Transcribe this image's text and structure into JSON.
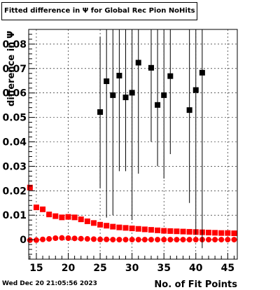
{
  "title": "Fitted difference in  Ψ  for Global Rec Pion NoHits",
  "datestamp": "Wed Dec 20 21:05:56 2023",
  "chart_data": {
    "type": "scatter",
    "title": "Fitted difference in  Ψ  for Global Rec Pion NoHits",
    "xlabel": "No. of Fit Points",
    "ylabel": "difference in Ψ",
    "xlim": [
      13.8,
      46.5
    ],
    "ylim": [
      -0.008,
      0.086
    ],
    "xticks": [
      15,
      20,
      25,
      30,
      35,
      40,
      45
    ],
    "yticks": [
      0,
      0.01,
      0.02,
      0.03,
      0.04,
      0.05,
      0.06,
      0.07,
      0.08
    ],
    "ytick_labels": [
      "0",
      "0.01",
      "0.02",
      "0.03",
      "0.04",
      "0.05",
      "0.06",
      "0.07",
      "0.08"
    ],
    "grid": true,
    "colors": {
      "red": "#ff0000",
      "black": "#000000"
    },
    "series": [
      {
        "marker": "square",
        "color": "#ff0000",
        "x": [
          14,
          15,
          16,
          17,
          18,
          19,
          20,
          21,
          22,
          23,
          24,
          25,
          26,
          27,
          28,
          29,
          30,
          31,
          32,
          33,
          34,
          35,
          36,
          37,
          38,
          39,
          40,
          41,
          42,
          43,
          44,
          45,
          46
        ],
        "y": [
          0.0213,
          0.0132,
          0.0124,
          0.0103,
          0.0096,
          0.0091,
          0.0093,
          0.0091,
          0.0083,
          0.0075,
          0.0068,
          0.0061,
          0.0057,
          0.0053,
          0.005,
          0.0048,
          0.0046,
          0.0044,
          0.0042,
          0.004,
          0.0038,
          0.0036,
          0.0035,
          0.0034,
          0.0033,
          0.0032,
          0.0031,
          0.003,
          0.0029,
          0.0028,
          0.0027,
          0.0027,
          0.0026
        ]
      },
      {
        "marker": "circle",
        "color": "#ff0000",
        "x": [
          14,
          15,
          16,
          17,
          18,
          19,
          20,
          21,
          22,
          23,
          24,
          25,
          26,
          27,
          28,
          29,
          30,
          31,
          32,
          33,
          34,
          35,
          36,
          37,
          38,
          39,
          40,
          41,
          42,
          43,
          44,
          45,
          46
        ],
        "y": [
          -0.0002,
          -0.0002,
          0.0001,
          0.0003,
          0.0006,
          0.0007,
          0.0006,
          0.0005,
          0.0004,
          0.0003,
          0.0002,
          0.0001,
          0.0001,
          0.0,
          0.0,
          0.0,
          0.0,
          0.0,
          0.0,
          0.0,
          0.0,
          0.0,
          0.0,
          0.0,
          0.0,
          0.0,
          0.0,
          0.0,
          0.0,
          0.0,
          0.0,
          0.0,
          0.0
        ]
      },
      {
        "marker": "square",
        "color": "#000000",
        "x": [
          25,
          26,
          27,
          28,
          29,
          30,
          31,
          33,
          34,
          35,
          36,
          39,
          40,
          41
        ],
        "y": [
          0.0522,
          0.0648,
          0.0591,
          0.0671,
          0.0582,
          0.0601,
          0.0724,
          0.0703,
          0.0551,
          0.0591,
          0.0669,
          0.053,
          0.0612,
          0.0683
        ],
        "err_low": [
          0.0312,
          0.0558,
          0.0491,
          0.0391,
          0.0302,
          0.0521,
          0.0454,
          0.0303,
          0.0251,
          0.0341,
          0.0319,
          0.038,
          0.0592,
          0.0718
        ],
        "err_high": [
          0.0308,
          0.022,
          0.028,
          0.02,
          0.029,
          0.027,
          0.015,
          0.017,
          0.031,
          0.028,
          0.021,
          0.033,
          0.026,
          0.019
        ]
      }
    ]
  }
}
